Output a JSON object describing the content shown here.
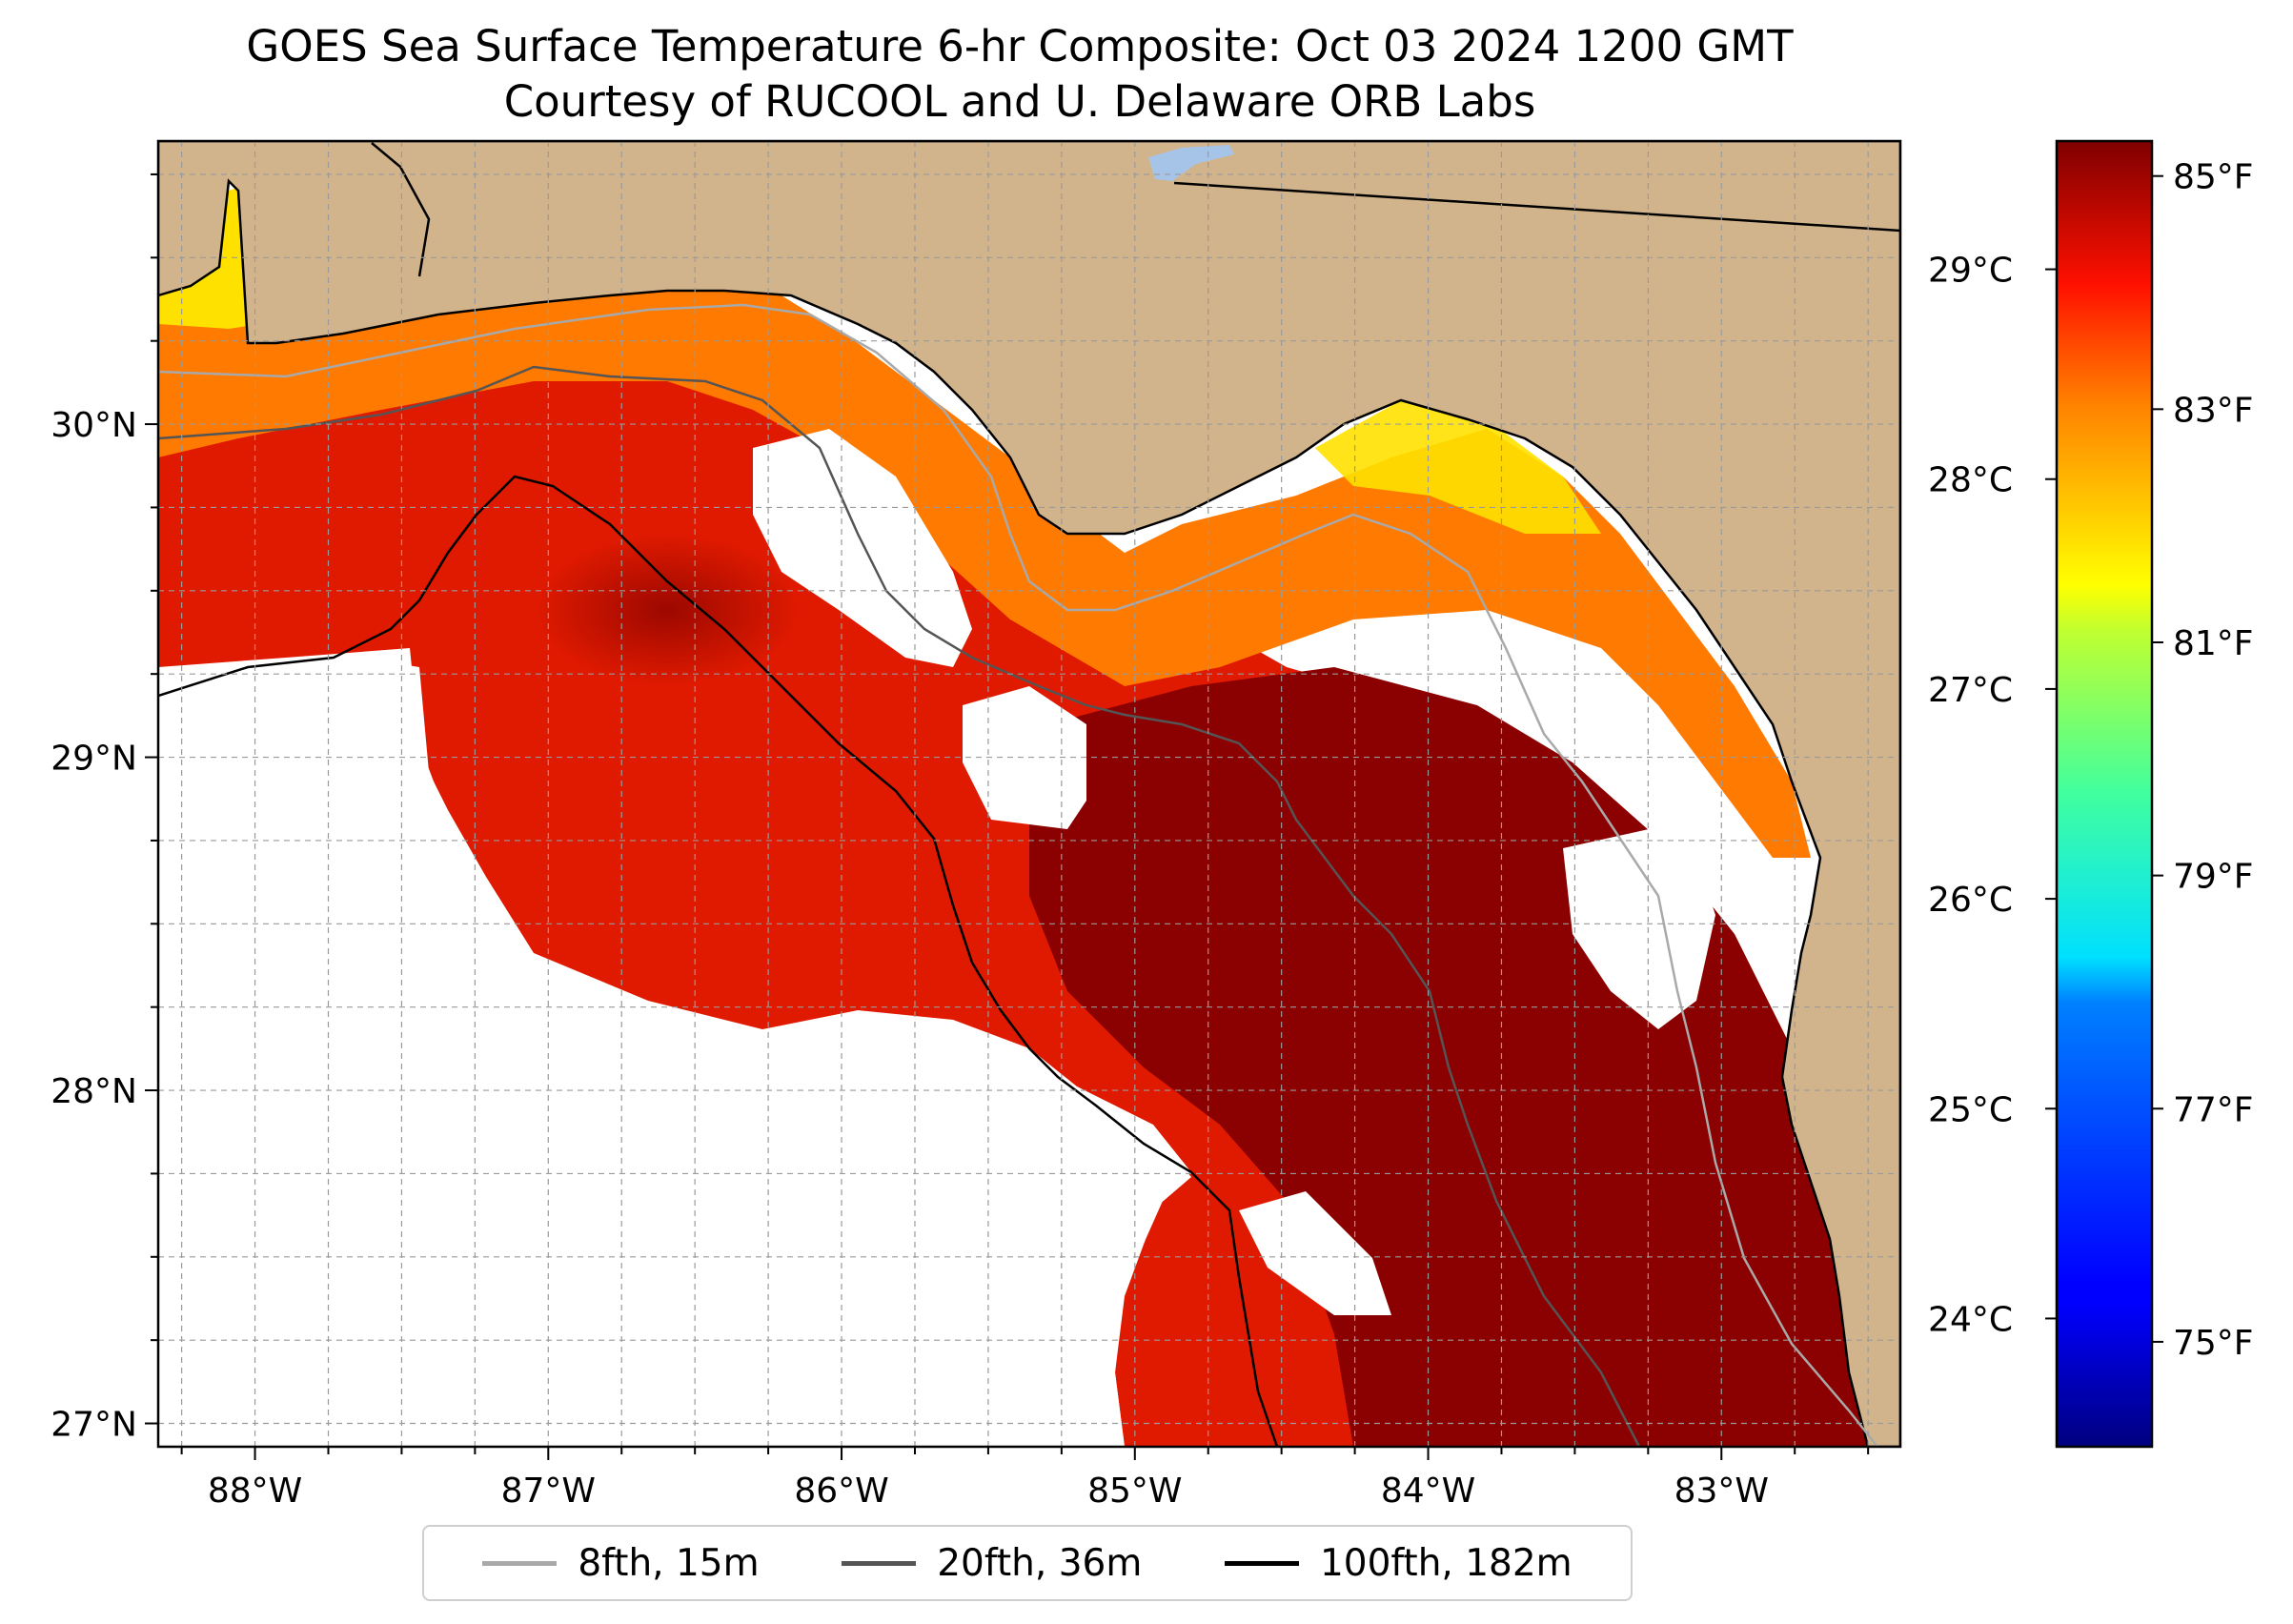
{
  "title": {
    "line1": "GOES Sea Surface Temperature 6-hr Composite: Oct 03 2024 1200 GMT",
    "line2": "Courtesy of RUCOOL and U. Delaware ORB Labs"
  },
  "map": {
    "extent": {
      "lon_min": -88.33,
      "lon_max": -82.39,
      "lat_min": 26.93,
      "lat_max": 30.85
    },
    "land_color": "#d2b48c",
    "lake_color": "#a6c3e8",
    "nodata_color": "#ffffff",
    "gridlines": "dashed grey, every 0.25°",
    "lat_ticks": [
      {
        "value": 30,
        "label": "30°N"
      },
      {
        "value": 29,
        "label": "29°N"
      },
      {
        "value": 28,
        "label": "28°N"
      },
      {
        "value": 27,
        "label": "27°N"
      }
    ],
    "lon_ticks": [
      {
        "value": -88,
        "label": "88°W"
      },
      {
        "value": -87,
        "label": "87°W"
      },
      {
        "value": -86,
        "label": "86°W"
      },
      {
        "value": -85,
        "label": "85°W"
      },
      {
        "value": -84,
        "label": "84°W"
      },
      {
        "value": -83,
        "label": "83°W"
      }
    ]
  },
  "legend": {
    "items": [
      {
        "label": "8fth, 15m",
        "color": "#a9a9a9"
      },
      {
        "label": "20fth, 36m",
        "color": "#555555"
      },
      {
        "label": "100fth, 182m",
        "color": "#000000"
      }
    ]
  },
  "colorbar": {
    "colormap": "jet",
    "f_min": 74.1,
    "f_max": 85.3,
    "f_ticks": [
      {
        "value": 85,
        "label": "85°F"
      },
      {
        "value": 83,
        "label": "83°F"
      },
      {
        "value": 81,
        "label": "81°F"
      },
      {
        "value": 79,
        "label": "79°F"
      },
      {
        "value": 77,
        "label": "77°F"
      },
      {
        "value": 75,
        "label": "75°F"
      }
    ],
    "c_ticks": [
      {
        "value": 29,
        "label": "29°C"
      },
      {
        "value": 28,
        "label": "28°C"
      },
      {
        "value": 27,
        "label": "27°C"
      },
      {
        "value": 26,
        "label": "26°C"
      },
      {
        "value": 25,
        "label": "25°C"
      },
      {
        "value": 24,
        "label": "24°C"
      }
    ]
  }
}
